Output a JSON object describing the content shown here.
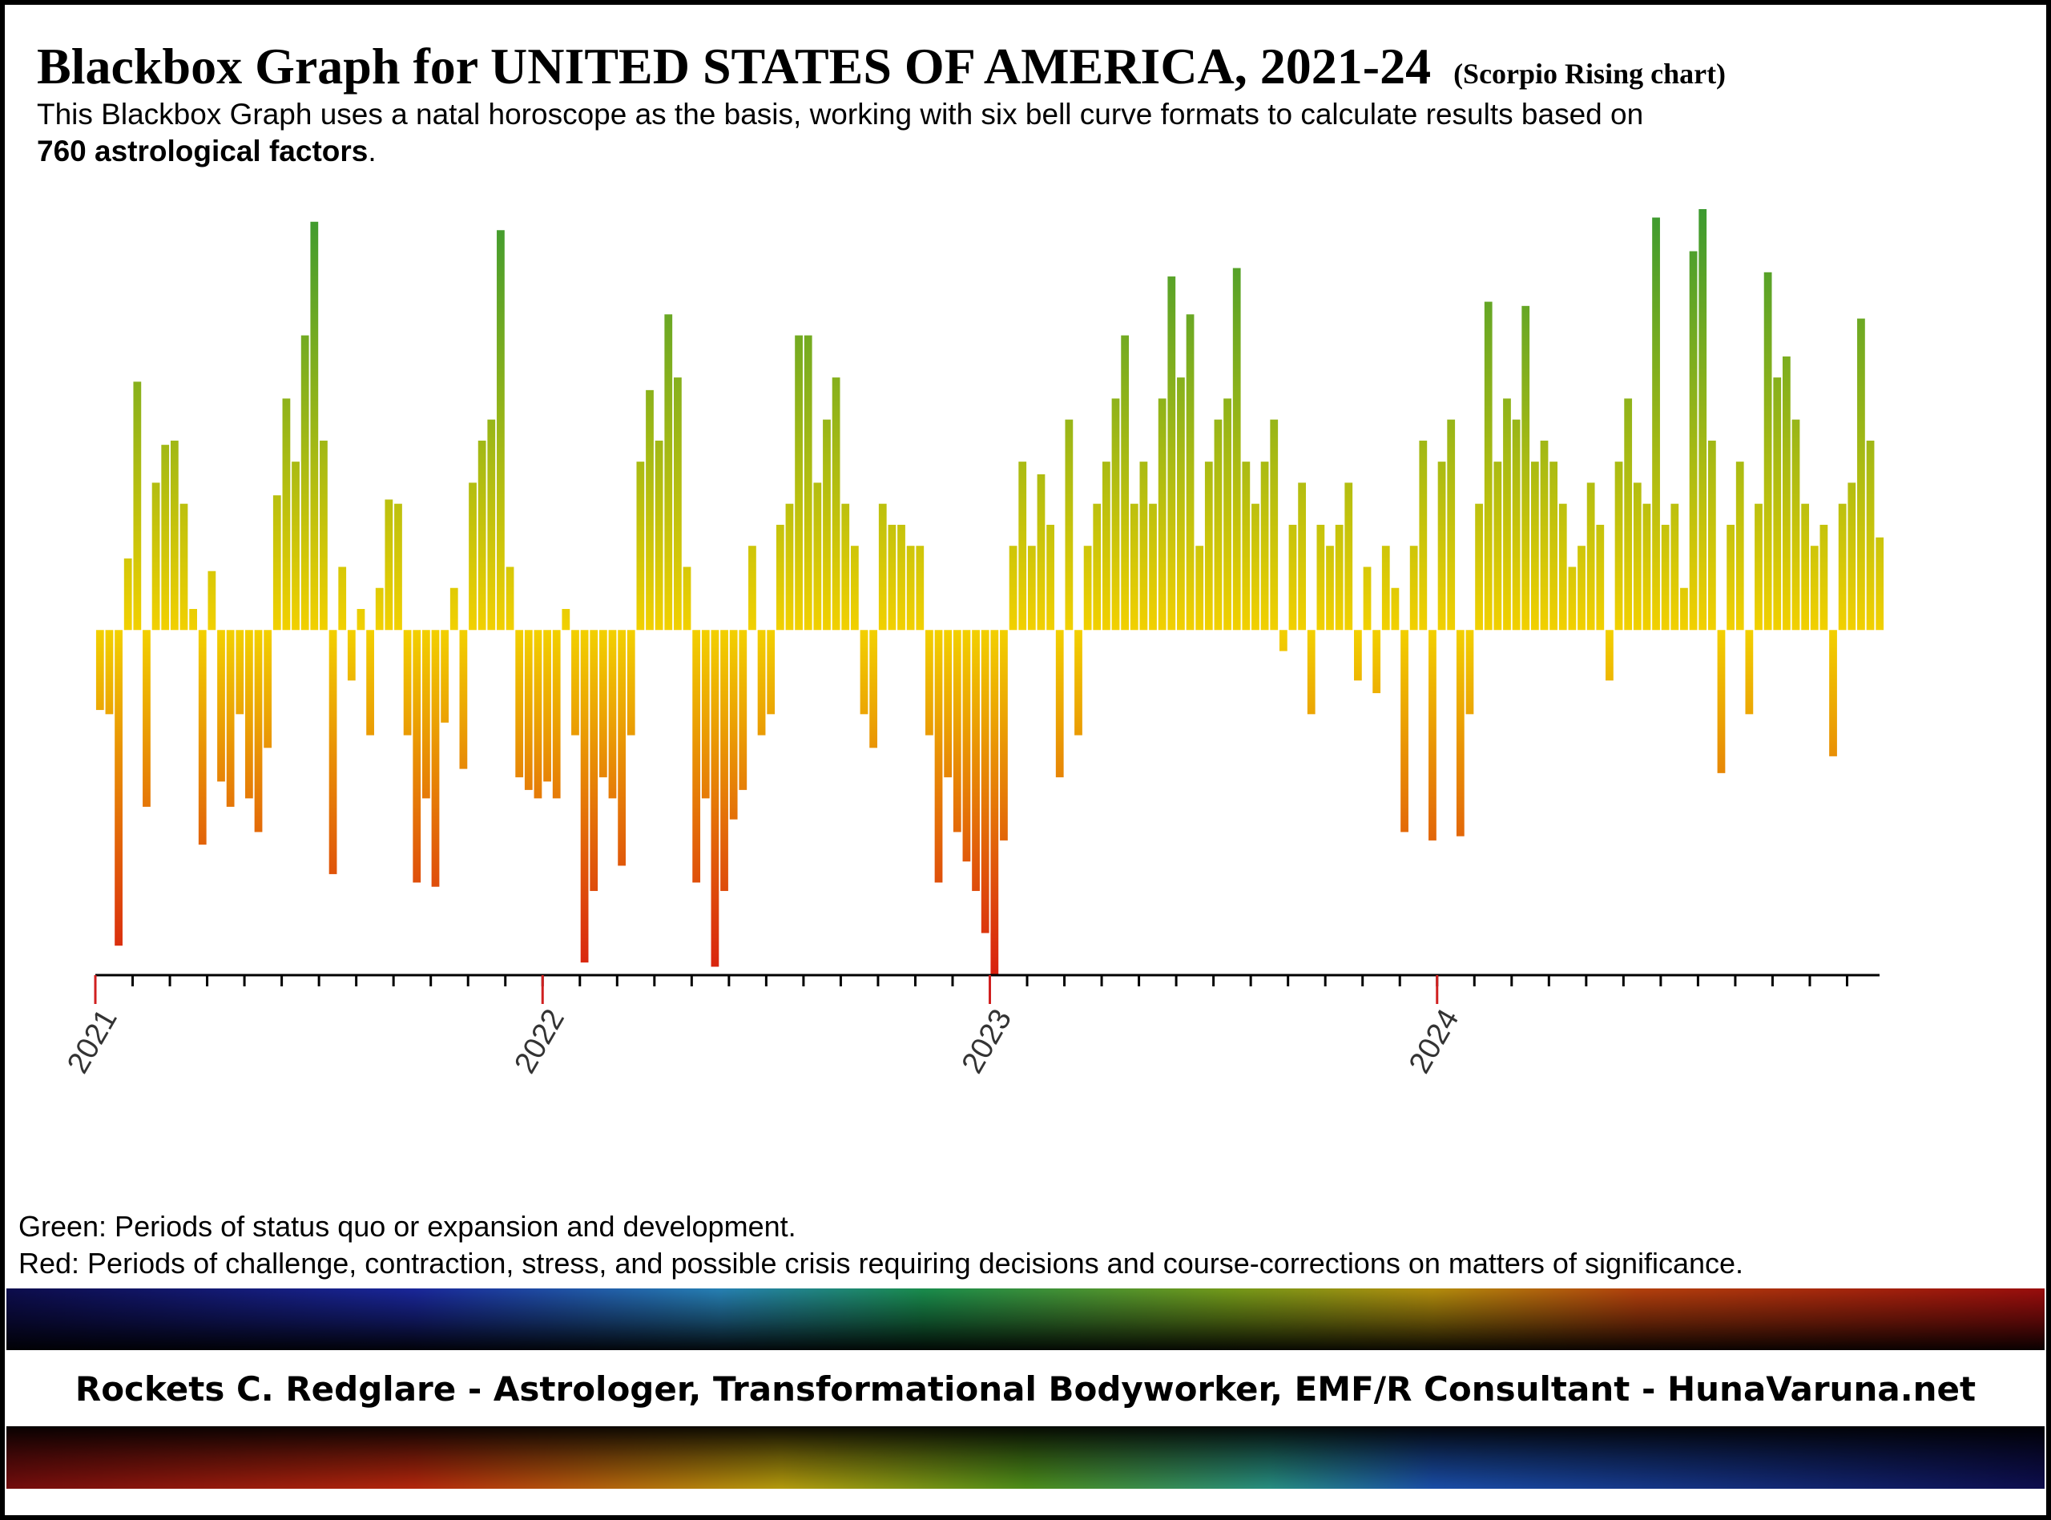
{
  "chart_data": {
    "type": "bar",
    "title": "Blackbox Graph for UNITED STATES OF AMERICA, 2021-24",
    "subtitle": "(Scorpio Rising chart)",
    "description": {
      "line1": "This Blackbox Graph uses a natal horoscope as the basis, working with six bell curve formats to calculate results based on",
      "bold": "760 astrological factors",
      "tail": "."
    },
    "legend_notes": [
      "Green:  Periods of status quo or expansion and development.",
      "Red:  Periods of challenge, contraction, stress, and possible crisis requiring decisions and course-corrections on matters of significance."
    ],
    "credit": "Rockets C. Redglare  -  Astrologer, Transformational Bodyworker, EMF/R Consultant  -  HunaVaruna.net",
    "xlim": [
      2021,
      2025
    ],
    "xticks": [
      2021,
      2022,
      2023,
      2024
    ],
    "ylim": [
      -82,
      100
    ],
    "colors": [
      "#3c9a30",
      "#f2d000",
      "#d8200f"
    ],
    "values": [
      -19,
      -20,
      -75,
      17,
      59,
      -42,
      35,
      44,
      45,
      30,
      5,
      -51,
      14,
      -36,
      -42,
      -20,
      -40,
      -48,
      -28,
      32,
      55,
      40,
      70,
      97,
      45,
      -58,
      15,
      -12,
      5,
      -25,
      10,
      31,
      30,
      -25,
      -60,
      -40,
      -61,
      -22,
      10,
      -33,
      35,
      45,
      50,
      95,
      15,
      -35,
      -38,
      -40,
      -36,
      -40,
      5,
      -25,
      -79,
      -62,
      -35,
      -40,
      -56,
      -25,
      40,
      57,
      45,
      75,
      60,
      15,
      -60,
      -40,
      -80,
      -62,
      -45,
      -38,
      20,
      -25,
      -20,
      25,
      30,
      70,
      70,
      35,
      50,
      60,
      30,
      20,
      -20,
      -28,
      30,
      25,
      25,
      20,
      20,
      -25,
      -60,
      -35,
      -48,
      -55,
      -62,
      -72,
      -82,
      -50,
      20,
      40,
      20,
      37,
      25,
      -35,
      50,
      -25,
      20,
      30,
      40,
      55,
      70,
      30,
      40,
      30,
      55,
      84,
      60,
      75,
      20,
      40,
      50,
      55,
      86,
      40,
      30,
      40,
      50,
      -5,
      25,
      35,
      -20,
      25,
      20,
      25,
      35,
      -12,
      15,
      -15,
      20,
      10,
      -48,
      20,
      45,
      -50,
      40,
      50,
      -49,
      -20,
      30,
      78,
      40,
      55,
      50,
      77,
      40,
      45,
      40,
      30,
      15,
      20,
      35,
      25,
      -12,
      40,
      55,
      35,
      30,
      98,
      25,
      30,
      10,
      90,
      100,
      45,
      -34,
      25,
      40,
      -20,
      30,
      85,
      60,
      65,
      50,
      30,
      20,
      25,
      -30,
      30,
      35,
      74,
      45,
      22
    ]
  }
}
